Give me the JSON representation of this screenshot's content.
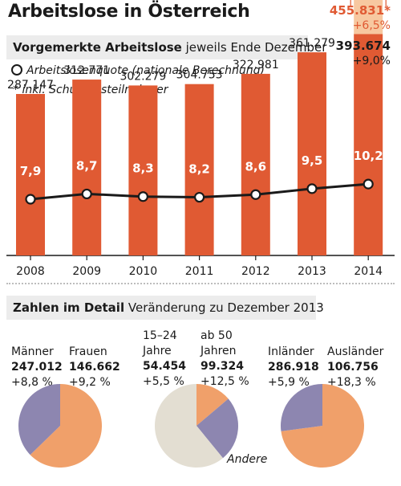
{
  "header": {
    "title": "Arbeitslose in Österreich",
    "subtitle_bold": "Vorgemerkte Arbeitslose",
    "subtitle_rest": "jeweils Ende Dezember",
    "legend_rate": "Arbeitslosenquote (nationale Berechnung)",
    "legend_training": "* inkl. Schulungsteilnehmer"
  },
  "chart_data": {
    "type": "bar",
    "categories": [
      "2008",
      "2009",
      "2010",
      "2011",
      "2012",
      "2013",
      "2014"
    ],
    "series": [
      {
        "name": "Vorgemerkte Arbeitslose",
        "values": [
          287147,
          312771,
          302279,
          304753,
          322981,
          361279,
          393674
        ],
        "labels": [
          "287.147",
          "312.771",
          "302.279",
          "304.753",
          "322.981",
          "361.279",
          "393.674"
        ]
      },
      {
        "name": "inkl. Schulungsteilnehmer",
        "values": [
          null,
          null,
          null,
          null,
          null,
          null,
          455831
        ],
        "labels": [
          "",
          "",
          "",
          "",
          "",
          "",
          "455.831*"
        ]
      },
      {
        "name": "Arbeitslosenquote (nationale Berechnung)",
        "values": [
          7.9,
          8.7,
          8.3,
          8.2,
          8.6,
          9.5,
          10.2
        ],
        "labels": [
          "7,9",
          "8,7",
          "8,3",
          "8,2",
          "8,6",
          "9,5",
          "10,2"
        ]
      }
    ],
    "change_labels_2014": {
      "total_incl_training": "+6,5%",
      "registered": "+9,0%"
    },
    "colors": {
      "bar": "#e05a33",
      "bar_training": "#f7c8a0",
      "line": "#1a1a1a",
      "highlight_text": "#e05a33"
    }
  },
  "details": {
    "title_bold": "Zahlen im Detail",
    "title_rest": "Veränderung zu Dezember 2013",
    "other_label": "Andere",
    "pies": [
      {
        "groups": [
          {
            "label": "Männer",
            "value": "247.012",
            "change": "+8,8 %"
          },
          {
            "label": "Frauen",
            "value": "146.662",
            "change": "+9,2 %"
          }
        ],
        "slices": [
          {
            "share": 0.6275,
            "color": "#f0a06a"
          },
          {
            "share": 0.3725,
            "color": "#8d86b0"
          }
        ]
      },
      {
        "groups": [
          {
            "label": "15–24 Jahre",
            "value": "54.454",
            "change": "+5,5 %"
          },
          {
            "label": "ab 50 Jahren",
            "value": "99.324",
            "change": "+12,5 %"
          }
        ],
        "slices": [
          {
            "share": 0.1383,
            "color": "#f0a06a"
          },
          {
            "share": 0.2523,
            "color": "#8d86b0"
          },
          {
            "share": 0.6094,
            "color": "#e3ded2"
          }
        ]
      },
      {
        "groups": [
          {
            "label": "Inländer",
            "value": "286.918",
            "change": "+5,9 %"
          },
          {
            "label": "Ausländer",
            "value": "106.756",
            "change": "+18,3 %"
          }
        ],
        "slices": [
          {
            "share": 0.7288,
            "color": "#f0a06a"
          },
          {
            "share": 0.2712,
            "color": "#8d86b0"
          }
        ]
      }
    ]
  }
}
